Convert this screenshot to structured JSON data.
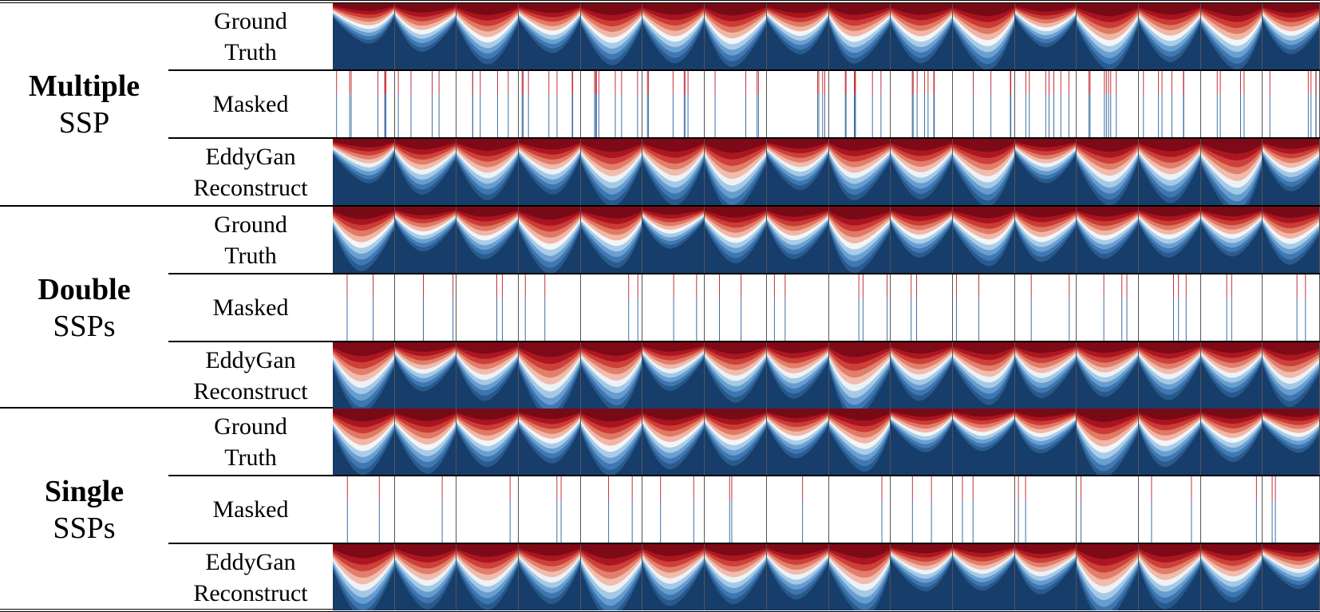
{
  "groups": [
    {
      "title_bold": "Multiple",
      "title": "SSP",
      "rows": [
        [
          "Ground",
          "Truth"
        ],
        [
          "Masked"
        ],
        [
          "EddyGan",
          "Reconstruct"
        ]
      ]
    },
    {
      "title_bold": "Double",
      "title": "SSPs",
      "rows": [
        [
          "Ground",
          "Truth"
        ],
        [
          "Masked"
        ],
        [
          "EddyGan",
          "Reconstruct"
        ]
      ]
    },
    {
      "title_bold": "Single",
      "title": "SSPs",
      "rows": [
        [
          "Ground",
          "Truth"
        ],
        [
          "Masked"
        ],
        [
          "EddyGan",
          "Reconstruct"
        ]
      ]
    }
  ]
}
